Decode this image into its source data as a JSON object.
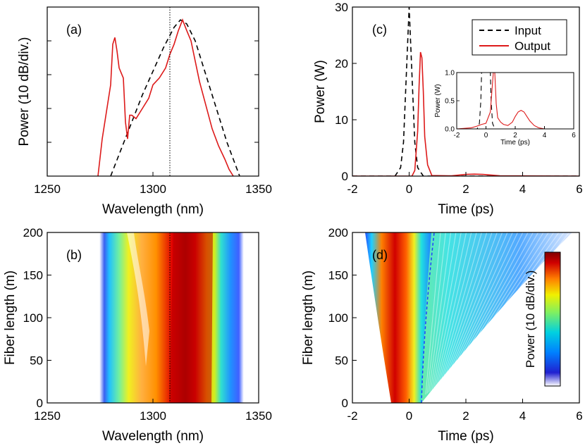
{
  "chart_data": [
    {
      "panel": "(a)",
      "type": "line",
      "xlabel": "Wavelength (nm)",
      "ylabel": "Power (10 dB/div.)",
      "xlim": [
        1250,
        1350
      ],
      "x_ticks": [
        "1250",
        "1300",
        "1350"
      ],
      "y_divisions": 5,
      "marker_line_x": 1303,
      "series": [
        {
          "name": "Input",
          "style": "dashed",
          "color": "#000000",
          "x": [
            1280,
            1285,
            1290,
            1295,
            1300,
            1305,
            1310,
            1313,
            1316,
            1320,
            1325,
            1330,
            1335,
            1341
          ],
          "y": [
            0,
            0.8,
            1.6,
            2.4,
            3.1,
            3.8,
            4.4,
            4.62,
            4.5,
            4.0,
            3.0,
            2.0,
            1.0,
            0
          ]
        },
        {
          "name": "Output",
          "style": "solid",
          "color": "#dd1a1a",
          "x": [
            1274,
            1276,
            1278,
            1280,
            1281,
            1282,
            1283,
            1284,
            1286,
            1287,
            1288,
            1289,
            1290,
            1292,
            1295,
            1298,
            1300,
            1303,
            1306,
            1308,
            1310,
            1312,
            1314,
            1316,
            1318,
            1320,
            1322,
            1325,
            1328,
            1331,
            1334,
            1336,
            1338
          ],
          "y": [
            0,
            1.1,
            1.9,
            2.7,
            3.9,
            4.1,
            3.7,
            3.2,
            2.9,
            1.6,
            1.1,
            1.8,
            1.8,
            1.7,
            2.0,
            2.3,
            2.7,
            2.9,
            3.2,
            3.6,
            3.9,
            4.3,
            4.62,
            4.3,
            4.0,
            3.4,
            2.8,
            2.1,
            1.4,
            0.9,
            0.5,
            0.2,
            0
          ]
        }
      ]
    },
    {
      "panel": "(b)",
      "type": "heatmap",
      "xlabel": "Wavelength (nm)",
      "ylabel": "Fiber length (m)",
      "xlim": [
        1250,
        1350
      ],
      "ylim": [
        0,
        200
      ],
      "x_ticks": [
        "1250",
        "1300",
        "1350"
      ],
      "y_ticks": [
        "0",
        "50",
        "100",
        "150",
        "200"
      ],
      "marker_line_x": 1303
    },
    {
      "panel": "(c)",
      "type": "line",
      "xlabel": "Time (ps)",
      "ylabel": "Power (W)",
      "xlim": [
        -2,
        6
      ],
      "ylim": [
        0,
        30
      ],
      "x_ticks": [
        "-2",
        "0",
        "2",
        "4",
        "6"
      ],
      "y_ticks": [
        "0",
        "10",
        "20",
        "30"
      ],
      "legend": {
        "position": "top-right",
        "entries": [
          "Input",
          "Output"
        ]
      },
      "series": [
        {
          "name": "Input",
          "style": "dashed",
          "color": "#000000",
          "x": [
            -2,
            -0.5,
            -0.3,
            -0.2,
            -0.1,
            0,
            0.1,
            0.2,
            0.3,
            0.5,
            6
          ],
          "y": [
            0,
            0,
            1.5,
            6,
            18,
            30,
            18,
            6,
            1.5,
            0,
            0
          ]
        },
        {
          "name": "Output",
          "style": "solid",
          "color": "#dd1a1a",
          "x": [
            -2,
            0.1,
            0.2,
            0.3,
            0.35,
            0.4,
            0.45,
            0.5,
            0.55,
            0.65,
            0.8,
            1.5,
            2.0,
            2.3,
            2.6,
            3.2,
            6
          ],
          "y": [
            0,
            0,
            1.0,
            8.0,
            16.0,
            22.0,
            21.0,
            15.0,
            7.0,
            2.0,
            0.1,
            0.05,
            0.3,
            0.35,
            0.3,
            0.05,
            0
          ]
        }
      ],
      "inset": {
        "xlabel": "Time (ps)",
        "ylabel": "Power (W)",
        "xlim": [
          -2,
          6
        ],
        "ylim": [
          0,
          1.0
        ],
        "x_ticks": [
          "-2",
          "0",
          "2",
          "4",
          "6"
        ],
        "y_ticks": [
          "0.0",
          "0.5",
          "1.0"
        ],
        "series": [
          {
            "name": "Input",
            "style": "dashed",
            "color": "#000000",
            "x": [
              -2,
              -0.6,
              -0.45,
              -0.35,
              -0.3,
              0.3,
              0.35,
              0.45,
              0.6,
              6
            ],
            "y": [
              0,
              0,
              0.1,
              0.5,
              1.0,
              1.0,
              0.5,
              0.1,
              0,
              0
            ]
          },
          {
            "name": "Output",
            "style": "solid",
            "color": "#dd1a1a",
            "x": [
              -2,
              -1.0,
              -0.6,
              -0.3,
              0.0,
              0.3,
              0.5,
              0.6,
              0.7,
              0.8,
              1.0,
              1.2,
              1.5,
              1.8,
              2.0,
              2.2,
              2.4,
              2.6,
              2.8,
              3.0,
              3.3,
              3.6,
              4.0,
              6
            ],
            "y": [
              0,
              0.02,
              0.05,
              0.08,
              0.1,
              0.3,
              1.0,
              1.0,
              0.45,
              0.2,
              0.12,
              0.08,
              0.06,
              0.12,
              0.22,
              0.3,
              0.33,
              0.3,
              0.22,
              0.14,
              0.06,
              0.02,
              0.0,
              0
            ]
          }
        ]
      }
    },
    {
      "panel": "(d)",
      "type": "heatmap",
      "xlabel": "Time (ps)",
      "ylabel": "Fiber length (m)",
      "xlim": [
        -2,
        6
      ],
      "ylim": [
        0,
        200
      ],
      "x_ticks": [
        "-2",
        "0",
        "2",
        "4",
        "6"
      ],
      "y_ticks": [
        "0",
        "50",
        "100",
        "150",
        "200"
      ],
      "colorbar": {
        "label": "Power (10 dB/div.)",
        "colors": [
          "#ffffff",
          "#0000c8",
          "#00a0ff",
          "#00e0c0",
          "#e8f000",
          "#ff8000",
          "#e00000",
          "#800000"
        ]
      }
    }
  ]
}
